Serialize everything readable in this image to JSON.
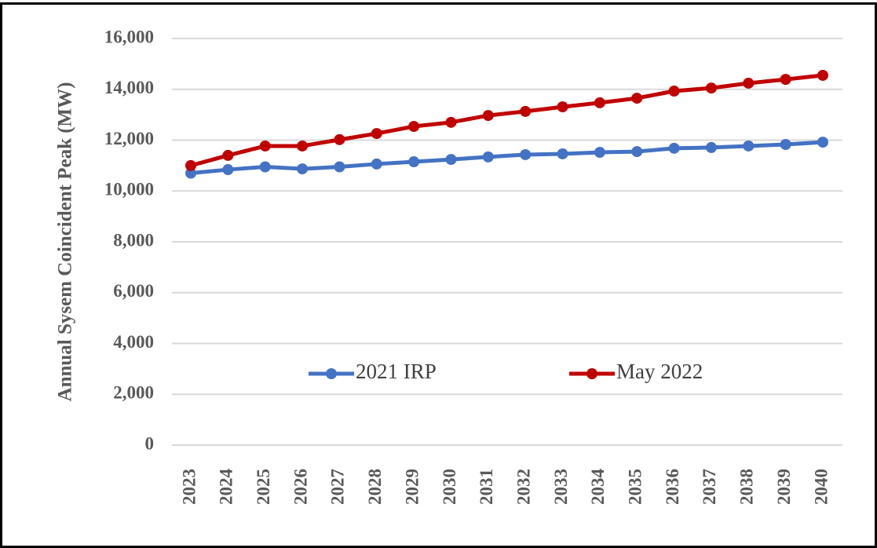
{
  "chart_data": {
    "type": "line",
    "y_axis_label": "Annual Sysem Coincident Peak (MW)",
    "categories": [
      "2023",
      "2024",
      "2025",
      "2026",
      "2027",
      "2028",
      "2029",
      "2030",
      "2031",
      "2032",
      "2033",
      "2034",
      "2035",
      "2036",
      "2037",
      "2038",
      "2039",
      "2040"
    ],
    "series": [
      {
        "name": "2021 IRP",
        "color": "#4472c4",
        "values": [
          10700,
          10840,
          10950,
          10870,
          10950,
          11060,
          11150,
          11240,
          11340,
          11430,
          11460,
          11520,
          11550,
          11680,
          11710,
          11770,
          11830,
          11920
        ]
      },
      {
        "name": "May 2022",
        "color": "#c00000",
        "values": [
          11000,
          11400,
          11770,
          11770,
          12020,
          12260,
          12540,
          12700,
          12970,
          13130,
          13310,
          13470,
          13650,
          13930,
          14050,
          14240,
          14390,
          14550
        ]
      }
    ],
    "ylim": [
      0,
      16000
    ],
    "yticks": [
      0,
      {
        "value": 2000,
        "label": "2,000"
      },
      {
        "value": 4000,
        "label": "4,000"
      },
      {
        "value": 6000,
        "label": "6,000"
      },
      {
        "value": 8000,
        "label": "8,000"
      },
      {
        "value": 10000,
        "label": "10,000"
      },
      {
        "value": 12000,
        "label": "12,000"
      },
      {
        "value": 14000,
        "label": "14,000"
      },
      {
        "value": 16000,
        "label": "16,000"
      }
    ],
    "grid": true,
    "legend": "center"
  }
}
